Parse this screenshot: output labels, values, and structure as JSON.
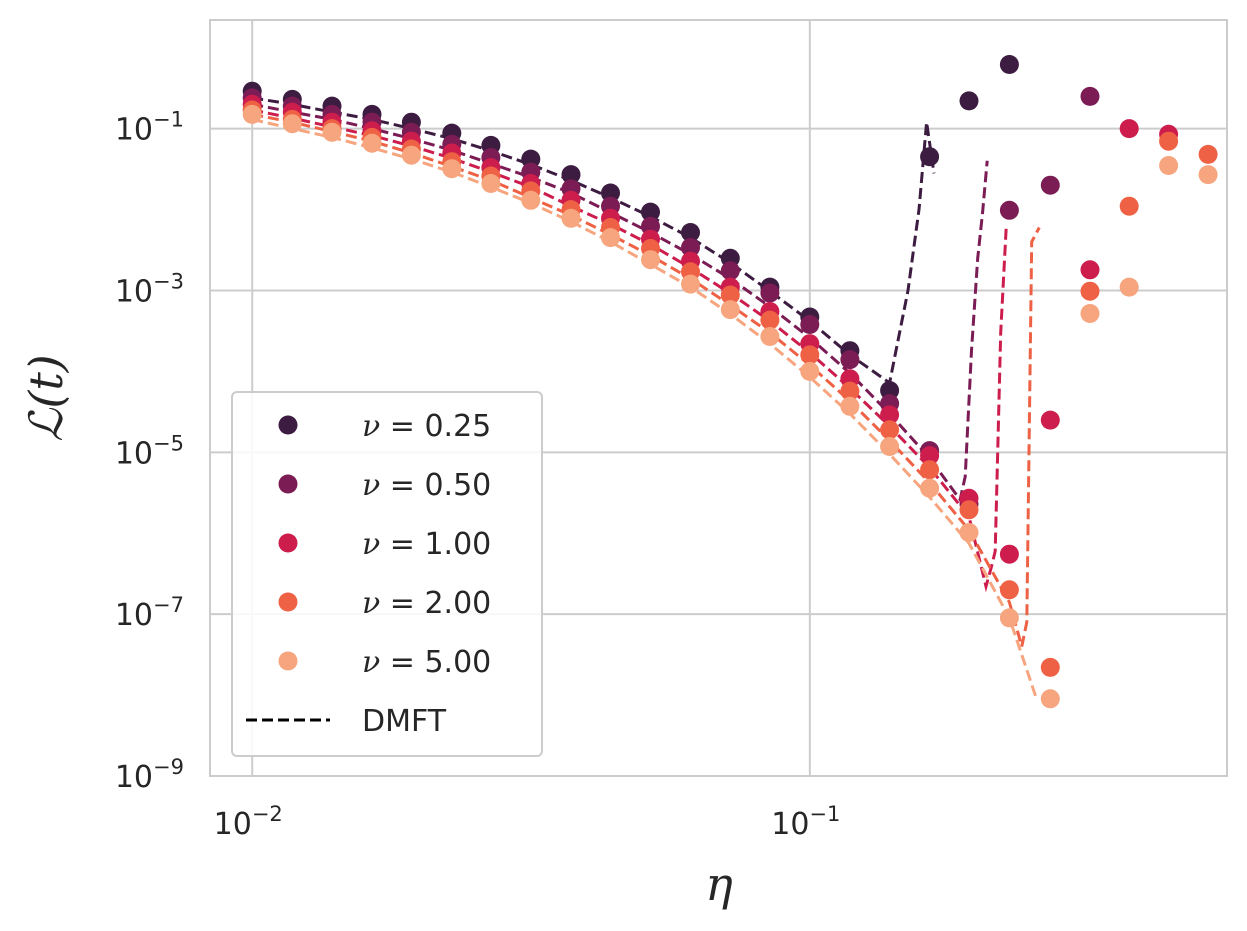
{
  "chart_data": {
    "type": "scatter",
    "xscale": "log",
    "yscale": "log",
    "xlim": [
      0.0084,
      0.56
    ],
    "ylim": [
      1e-09,
      2.2
    ],
    "xlabel": "η",
    "ylabel": "ℒ(t)",
    "x_ticks": [
      {
        "value": 0.01,
        "base": "10",
        "exp": "−2"
      },
      {
        "value": 0.1,
        "base": "10",
        "exp": "−1"
      }
    ],
    "y_ticks": [
      {
        "value": 1e-09,
        "base": "10",
        "exp": "−9"
      },
      {
        "value": 1e-07,
        "base": "10",
        "exp": "−7"
      },
      {
        "value": 1e-05,
        "base": "10",
        "exp": "−5"
      },
      {
        "value": 0.001,
        "base": "10",
        "exp": "−3"
      },
      {
        "value": 0.1,
        "base": "10",
        "exp": "−1"
      }
    ],
    "grid": true,
    "legend_position": "lower-left",
    "dmft_label": "DMFT",
    "series": [
      {
        "nu_label": "0.25",
        "color": "#3d1c41",
        "points": [
          [
            0.01,
            0.29
          ],
          [
            0.0118,
            0.23
          ],
          [
            0.0139,
            0.19
          ],
          [
            0.0164,
            0.15
          ],
          [
            0.0193,
            0.12
          ],
          [
            0.0228,
            0.088
          ],
          [
            0.0268,
            0.062
          ],
          [
            0.0316,
            0.042
          ],
          [
            0.0373,
            0.027
          ],
          [
            0.0439,
            0.016
          ],
          [
            0.0518,
            0.0093
          ],
          [
            0.0611,
            0.0052
          ],
          [
            0.072,
            0.0025
          ],
          [
            0.0848,
            0.0011
          ],
          [
            0.1,
            0.00047
          ],
          [
            0.118,
            0.00018
          ],
          [
            0.139,
            5.8e-05
          ],
          [
            0.164,
            0.045
          ],
          [
            0.193,
            0.22
          ],
          [
            0.228,
            0.62
          ]
        ],
        "dmft": [
          [
            0.01,
            0.24
          ],
          [
            0.0118,
            0.2
          ],
          [
            0.0139,
            0.16
          ],
          [
            0.0164,
            0.13
          ],
          [
            0.0193,
            0.1
          ],
          [
            0.0228,
            0.075
          ],
          [
            0.0268,
            0.053
          ],
          [
            0.0316,
            0.036
          ],
          [
            0.0373,
            0.023
          ],
          [
            0.0439,
            0.014
          ],
          [
            0.0518,
            0.0082
          ],
          [
            0.0611,
            0.0045
          ],
          [
            0.072,
            0.0022
          ],
          [
            0.0848,
            0.00098
          ],
          [
            0.1,
            0.00042
          ],
          [
            0.118,
            0.00016
          ],
          [
            0.139,
            7.2e-05
          ],
          [
            0.142,
            0.00015
          ],
          [
            0.15,
            0.001
          ],
          [
            0.157,
            0.01
          ],
          [
            0.162,
            0.12
          ],
          [
            0.167,
            0.028
          ]
        ]
      },
      {
        "nu_label": "0.50",
        "color": "#7b1c55",
        "points": [
          [
            0.01,
            0.24
          ],
          [
            0.0118,
            0.19
          ],
          [
            0.0139,
            0.15
          ],
          [
            0.0164,
            0.12
          ],
          [
            0.0193,
            0.09
          ],
          [
            0.0228,
            0.064
          ],
          [
            0.0268,
            0.044
          ],
          [
            0.0316,
            0.029
          ],
          [
            0.0373,
            0.018
          ],
          [
            0.0439,
            0.011
          ],
          [
            0.0518,
            0.0062
          ],
          [
            0.0611,
            0.0034
          ],
          [
            0.072,
            0.00175
          ],
          [
            0.0848,
            0.00093
          ],
          [
            0.1,
            0.00038
          ],
          [
            0.118,
            0.00014
          ],
          [
            0.139,
            4e-05
          ],
          [
            0.164,
            1.05e-05
          ],
          [
            0.193,
            2.3e-06
          ],
          [
            0.228,
            0.0098
          ],
          [
            0.27,
            0.02
          ],
          [
            0.318,
            0.25
          ]
        ],
        "dmft": [
          [
            0.01,
            0.2
          ],
          [
            0.0118,
            0.16
          ],
          [
            0.0139,
            0.13
          ],
          [
            0.0164,
            0.1
          ],
          [
            0.0193,
            0.075
          ],
          [
            0.0228,
            0.054
          ],
          [
            0.0268,
            0.037
          ],
          [
            0.0316,
            0.025
          ],
          [
            0.0373,
            0.016
          ],
          [
            0.0439,
            0.0092
          ],
          [
            0.0518,
            0.0052
          ],
          [
            0.0611,
            0.0028
          ],
          [
            0.072,
            0.0014
          ],
          [
            0.0848,
            0.00063
          ],
          [
            0.1,
            0.00026
          ],
          [
            0.118,
            9.5e-05
          ],
          [
            0.139,
            3e-05
          ],
          [
            0.164,
            8.5e-06
          ],
          [
            0.186,
            2.6e-06
          ],
          [
            0.19,
            5e-06
          ],
          [
            0.195,
            0.00018
          ],
          [
            0.2,
            0.0025
          ],
          [
            0.204,
            0.009
          ],
          [
            0.208,
            0.04
          ]
        ]
      },
      {
        "nu_label": "1.00",
        "color": "#cc1d4d",
        "points": [
          [
            0.01,
            0.2
          ],
          [
            0.0118,
            0.16
          ],
          [
            0.0139,
            0.12
          ],
          [
            0.0164,
            0.094
          ],
          [
            0.0193,
            0.07
          ],
          [
            0.0228,
            0.05
          ],
          [
            0.0268,
            0.033
          ],
          [
            0.0316,
            0.021
          ],
          [
            0.0373,
            0.013
          ],
          [
            0.0439,
            0.0078
          ],
          [
            0.0518,
            0.0043
          ],
          [
            0.0611,
            0.0023
          ],
          [
            0.072,
            0.0011
          ],
          [
            0.0848,
            0.00055
          ],
          [
            0.1,
            0.00022
          ],
          [
            0.118,
            8.1e-05
          ],
          [
            0.139,
            2.9e-05
          ],
          [
            0.164,
            9.1e-06
          ],
          [
            0.193,
            2.7e-06
          ],
          [
            0.228,
            5.5e-07
          ],
          [
            0.27,
            2.5e-05
          ],
          [
            0.318,
            0.0018
          ],
          [
            0.374,
            0.1
          ],
          [
            0.44,
            0.085
          ]
        ],
        "dmft": [
          [
            0.01,
            0.17
          ],
          [
            0.0118,
            0.135
          ],
          [
            0.0139,
            0.105
          ],
          [
            0.0164,
            0.082
          ],
          [
            0.0193,
            0.061
          ],
          [
            0.0228,
            0.043
          ],
          [
            0.0268,
            0.029
          ],
          [
            0.0316,
            0.019
          ],
          [
            0.0373,
            0.011
          ],
          [
            0.0439,
            0.0066
          ],
          [
            0.0518,
            0.0037
          ],
          [
            0.0611,
            0.0019
          ],
          [
            0.072,
            0.00092
          ],
          [
            0.0848,
            0.00042
          ],
          [
            0.1,
            0.00017
          ],
          [
            0.118,
            6.2e-05
          ],
          [
            0.139,
            2.1e-05
          ],
          [
            0.164,
            6.5e-06
          ],
          [
            0.193,
            1.6e-06
          ],
          [
            0.207,
            2.2e-07
          ],
          [
            0.212,
            4e-07
          ],
          [
            0.215,
            6e-07
          ],
          [
            0.22,
            0.0003
          ],
          [
            0.225,
            0.006
          ]
        ]
      },
      {
        "nu_label": "2.00",
        "color": "#ef6144",
        "points": [
          [
            0.01,
            0.17
          ],
          [
            0.0118,
            0.13
          ],
          [
            0.0139,
            0.1
          ],
          [
            0.0164,
            0.078
          ],
          [
            0.0193,
            0.056
          ],
          [
            0.0228,
            0.039
          ],
          [
            0.0268,
            0.026
          ],
          [
            0.0316,
            0.017
          ],
          [
            0.0373,
            0.01
          ],
          [
            0.0439,
            0.006
          ],
          [
            0.0518,
            0.0033
          ],
          [
            0.0611,
            0.0017
          ],
          [
            0.072,
            0.00088
          ],
          [
            0.0848,
            0.00043
          ],
          [
            0.1,
            0.00016
          ],
          [
            0.118,
            5.7e-05
          ],
          [
            0.139,
            1.9e-05
          ],
          [
            0.164,
            6.1e-06
          ],
          [
            0.193,
            1.95e-06
          ],
          [
            0.228,
            2e-07
          ],
          [
            0.27,
            2.2e-08
          ],
          [
            0.318,
            0.00098
          ],
          [
            0.374,
            0.011
          ],
          [
            0.44,
            0.07
          ],
          [
            0.518,
            0.048
          ]
        ],
        "dmft": [
          [
            0.01,
            0.15
          ],
          [
            0.0118,
            0.12
          ],
          [
            0.0139,
            0.092
          ],
          [
            0.0164,
            0.07
          ],
          [
            0.0193,
            0.05
          ],
          [
            0.0228,
            0.034
          ],
          [
            0.0268,
            0.023
          ],
          [
            0.0316,
            0.014
          ],
          [
            0.0373,
            0.0085
          ],
          [
            0.0439,
            0.0049
          ],
          [
            0.0518,
            0.0027
          ],
          [
            0.0611,
            0.0014
          ],
          [
            0.072,
            0.00066
          ],
          [
            0.0848,
            0.0003
          ],
          [
            0.1,
            0.00012
          ],
          [
            0.118,
            4.3e-05
          ],
          [
            0.139,
            1.4e-05
          ],
          [
            0.164,
            4.2e-06
          ],
          [
            0.193,
            1.1e-06
          ],
          [
            0.228,
            1.4e-07
          ],
          [
            0.24,
            4e-08
          ],
          [
            0.245,
            8e-08
          ],
          [
            0.25,
            0.004
          ],
          [
            0.258,
            0.006
          ]
        ]
      },
      {
        "nu_label": "5.00",
        "color": "#f6a57e",
        "points": [
          [
            0.01,
            0.15
          ],
          [
            0.0118,
            0.115
          ],
          [
            0.0139,
            0.09
          ],
          [
            0.0164,
            0.066
          ],
          [
            0.0193,
            0.047
          ],
          [
            0.0228,
            0.032
          ],
          [
            0.0268,
            0.021
          ],
          [
            0.0316,
            0.013
          ],
          [
            0.0373,
            0.0078
          ],
          [
            0.0439,
            0.0045
          ],
          [
            0.0518,
            0.0024
          ],
          [
            0.0611,
            0.0012
          ],
          [
            0.072,
            0.00058
          ],
          [
            0.0848,
            0.00027
          ],
          [
            0.1,
            0.0001
          ],
          [
            0.118,
            3.7e-05
          ],
          [
            0.139,
            1.18e-05
          ],
          [
            0.164,
            3.6e-06
          ],
          [
            0.193,
            1.02e-06
          ],
          [
            0.228,
            9e-08
          ],
          [
            0.27,
            9e-09
          ],
          [
            0.318,
            0.00052
          ],
          [
            0.374,
            0.0011
          ],
          [
            0.44,
            0.035
          ],
          [
            0.518,
            0.027
          ]
        ],
        "dmft": [
          [
            0.01,
            0.13
          ],
          [
            0.0118,
            0.1
          ],
          [
            0.0139,
            0.078
          ],
          [
            0.0164,
            0.058
          ],
          [
            0.0193,
            0.042
          ],
          [
            0.0228,
            0.029
          ],
          [
            0.0268,
            0.019
          ],
          [
            0.0316,
            0.012
          ],
          [
            0.0373,
            0.0071
          ],
          [
            0.0439,
            0.004
          ],
          [
            0.0518,
            0.0021
          ],
          [
            0.0611,
            0.0011
          ],
          [
            0.072,
            0.00051
          ],
          [
            0.0848,
            0.00022
          ],
          [
            0.1,
            8.5e-05
          ],
          [
            0.118,
            3e-05
          ],
          [
            0.139,
            9.5e-06
          ],
          [
            0.164,
            2.8e-06
          ],
          [
            0.193,
            7.5e-07
          ],
          [
            0.228,
            9e-08
          ],
          [
            0.255,
            9e-09
          ]
        ]
      }
    ]
  }
}
